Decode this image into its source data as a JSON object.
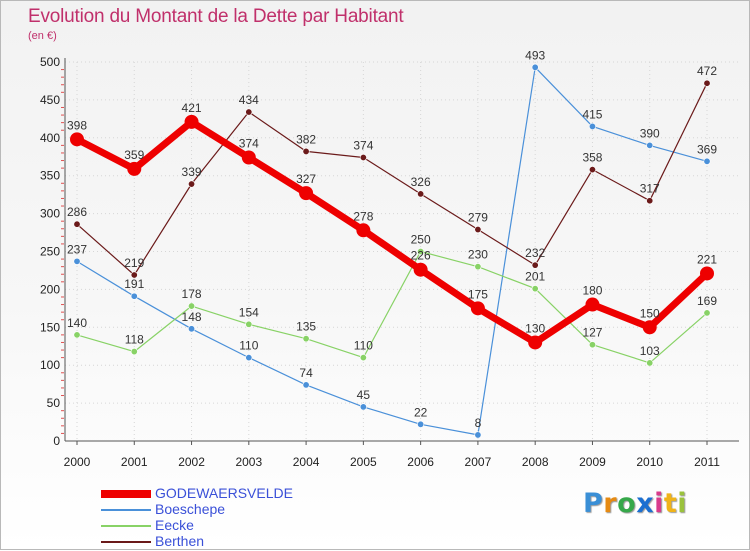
{
  "title": "Evolution du Montant de la Dette par Habitant",
  "subtitle": "(en €)",
  "brand": {
    "text": "Proxiti",
    "letter_colors": [
      "#3a8fd6",
      "#e68a12",
      "#36a84a",
      "#1b6fd1",
      "#d93b8c",
      "#f0b318",
      "#9ac23c"
    ]
  },
  "chart_data": {
    "type": "line",
    "categories": [
      "2000",
      "2001",
      "2002",
      "2003",
      "2004",
      "2005",
      "2006",
      "2007",
      "2008",
      "2009",
      "2010",
      "2011"
    ],
    "ylim": [
      0,
      500
    ],
    "yticks": [
      0,
      50,
      100,
      150,
      200,
      250,
      300,
      350,
      400,
      450,
      500
    ],
    "grid": true,
    "legend_position": "bottom-left",
    "series": [
      {
        "name": "GODEWAERSVELDE",
        "color": "#ee0000",
        "values": [
          398,
          359,
          421,
          374,
          327,
          278,
          226,
          175,
          130,
          180,
          150,
          221
        ]
      },
      {
        "name": "Boeschepe",
        "color": "#4a90d9",
        "values": [
          237,
          191,
          148,
          110,
          74,
          45,
          22,
          8,
          493,
          415,
          390,
          369
        ]
      },
      {
        "name": "Eecke",
        "color": "#88d266",
        "values": [
          140,
          118,
          178,
          154,
          135,
          110,
          250,
          230,
          201,
          127,
          103,
          169
        ]
      },
      {
        "name": "Berthen",
        "color": "#6b1a1a",
        "values": [
          286,
          219,
          339,
          434,
          382,
          374,
          326,
          279,
          232,
          358,
          317,
          472
        ]
      }
    ]
  }
}
